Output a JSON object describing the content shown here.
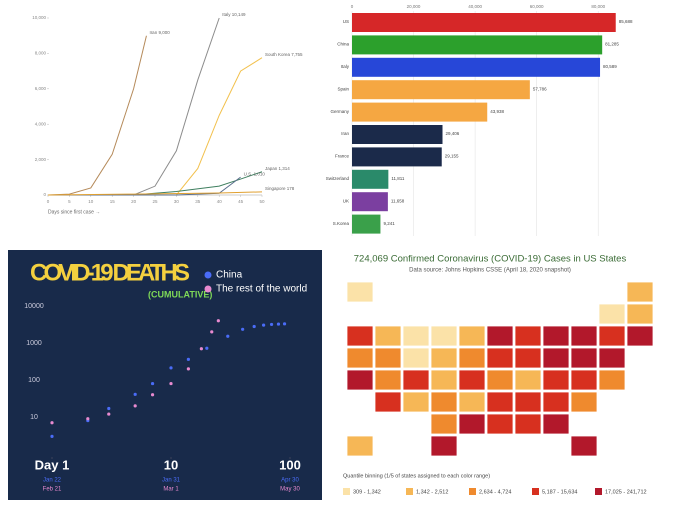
{
  "chart_data": [
    {
      "type": "line",
      "xlabel": "Days since first case →",
      "xlim": [
        0,
        50
      ],
      "ylim": [
        0,
        10000
      ],
      "xticks": [
        0,
        5,
        10,
        15,
        20,
        25,
        30,
        35,
        40,
        45,
        50
      ],
      "yticks": [
        0,
        {
          "value": 2000,
          "label": "2,000"
        },
        {
          "value": 4000,
          "label": "4,000"
        },
        {
          "value": 6000,
          "label": "6,000"
        },
        {
          "value": 8000,
          "label": "8,000"
        },
        {
          "value": 10000,
          "label": "10,000"
        }
      ],
      "series": [
        {
          "name": "Iran 9,000",
          "color": "#b58a5a",
          "x": [
            0,
            5,
            10,
            15,
            20,
            23
          ],
          "values": [
            0,
            50,
            400,
            2300,
            6000,
            9000
          ]
        },
        {
          "name": "Italy 10,149",
          "color": "#8c8c8c",
          "x": [
            0,
            10,
            20,
            25,
            30,
            35,
            40
          ],
          "values": [
            0,
            0,
            0,
            500,
            2500,
            6500,
            10000
          ]
        },
        {
          "name": "South Korea 7,755",
          "color": "#f2c14e",
          "x": [
            0,
            20,
            30,
            35,
            40,
            45,
            50
          ],
          "values": [
            0,
            0,
            0,
            1500,
            4500,
            7000,
            7755
          ]
        },
        {
          "name": "Japan 1,314",
          "color": "#3f7f5f",
          "x": [
            0,
            20,
            30,
            40,
            45,
            50
          ],
          "values": [
            0,
            0,
            200,
            500,
            900,
            1314
          ]
        },
        {
          "name": "U.S. 1,010",
          "color": "#5a6e8c",
          "x": [
            0,
            30,
            40,
            45
          ],
          "values": [
            0,
            0,
            100,
            1010
          ]
        },
        {
          "name": "Singapore 178",
          "color": "#e0a030",
          "x": [
            0,
            20,
            40,
            50
          ],
          "values": [
            0,
            50,
            110,
            178
          ]
        }
      ]
    },
    {
      "type": "bar",
      "categories": [
        "US",
        "China",
        "Italy",
        "Spain",
        "Germany",
        "Iran",
        "France",
        "Switzerland",
        "UK",
        "S.Korea"
      ],
      "values": [
        85688,
        81285,
        80589,
        57786,
        43938,
        29406,
        29155,
        11811,
        11658,
        9241
      ],
      "value_labels": [
        "85,688",
        "81,285",
        "80,589",
        "57,786",
        "43,938",
        "29,406",
        "29,155",
        "11,811",
        "11,658",
        "9,241"
      ],
      "colors": [
        "#d62728",
        "#2ca02c",
        "#2747d8",
        "#f5a742",
        "#f5a742",
        "#1b2a4a",
        "#1b2a4a",
        "#2a8a6a",
        "#7b3fa0",
        "#3aa04a"
      ],
      "xlim": [
        0,
        90000
      ],
      "xticks": [
        0,
        {
          "value": 20000,
          "label": "20,000"
        },
        {
          "value": 40000,
          "label": "40,000"
        },
        {
          "value": 60000,
          "label": "60,000"
        },
        {
          "value": 80000,
          "label": "80,000"
        }
      ]
    },
    {
      "type": "scatter",
      "title": "COVID-19 DEATHS",
      "subtitle": "(CUMULATIVE)",
      "log_x": true,
      "log_y": true,
      "xlim": [
        1,
        100
      ],
      "ylim": [
        1,
        10000
      ],
      "xticks": [
        {
          "value": 1,
          "label": "Day 1"
        },
        10,
        100
      ],
      "yticks": [
        10,
        100,
        1000,
        10000
      ],
      "series": [
        {
          "name": "China",
          "color": "#4a6cf7",
          "tick_labels": [
            "Jan 22",
            "Jan 31",
            "Apr 30"
          ],
          "x": [
            1,
            2,
            3,
            5,
            7,
            10,
            14,
            20,
            30,
            40,
            50,
            60,
            70,
            80,
            90
          ],
          "values": [
            3,
            8,
            17,
            41,
            80,
            213,
            362,
            722,
            1523,
            2345,
            2788,
            3042,
            3176,
            3249,
            3300
          ]
        },
        {
          "name": "The rest of the world",
          "color": "#e88ad0",
          "tick_labels": [
            "Feb 21",
            "Mar 1",
            "May 30"
          ],
          "x": [
            1,
            2,
            3,
            5,
            7,
            10,
            14,
            18,
            22,
            25
          ],
          "values": [
            7,
            9,
            12,
            20,
            40,
            80,
            200,
            700,
            2000,
            4000
          ]
        }
      ]
    },
    {
      "type": "map",
      "title": "724,069 Confirmed Coronavirus (COVID-19) Cases in US States",
      "subtitle": "Data source: Johns Hopkins CSSE (April 18, 2020 snapshot)",
      "legend_title": "Quantile binning (1/5 of states assigned to each color range)",
      "bins": [
        {
          "label": "309 - 1,342",
          "color": "#fbe2a8"
        },
        {
          "label": "1,342 - 2,512",
          "color": "#f6b756"
        },
        {
          "label": "2,634 - 4,724",
          "color": "#ef8a2e"
        },
        {
          "label": "5,187 - 15,634",
          "color": "#d7301f"
        },
        {
          "label": "17,025 - 241,712",
          "color": "#b2182b"
        }
      ],
      "state_bins": [
        0,
        1,
        0,
        1,
        3,
        1,
        0,
        0,
        1,
        4,
        3,
        4,
        4,
        3,
        4,
        2,
        2,
        0,
        1,
        2,
        3,
        3,
        4,
        4,
        4,
        4,
        2,
        3,
        1,
        3,
        2,
        1,
        3,
        3,
        2,
        3,
        1,
        2,
        1,
        3,
        3,
        3,
        2,
        2,
        4,
        3,
        3,
        4,
        1,
        4,
        4
      ]
    }
  ]
}
